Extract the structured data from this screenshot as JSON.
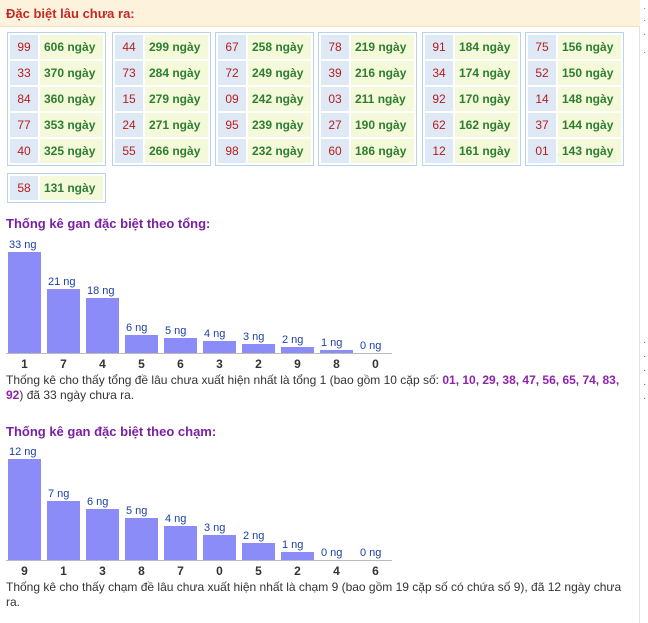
{
  "header": {
    "title": "Đặc biệt lâu chưa ra:"
  },
  "gan_groups": [
    [
      {
        "num": "99",
        "days": "606 ngày"
      },
      {
        "num": "33",
        "days": "370 ngày"
      },
      {
        "num": "84",
        "days": "360 ngày"
      },
      {
        "num": "77",
        "days": "353 ngày"
      },
      {
        "num": "40",
        "days": "325 ngày"
      }
    ],
    [
      {
        "num": "44",
        "days": "299 ngày"
      },
      {
        "num": "73",
        "days": "284 ngày"
      },
      {
        "num": "15",
        "days": "279 ngày"
      },
      {
        "num": "24",
        "days": "271 ngày"
      },
      {
        "num": "55",
        "days": "266 ngày"
      }
    ],
    [
      {
        "num": "67",
        "days": "258 ngày"
      },
      {
        "num": "72",
        "days": "249 ngày"
      },
      {
        "num": "09",
        "days": "242 ngày"
      },
      {
        "num": "95",
        "days": "239 ngày"
      },
      {
        "num": "98",
        "days": "232 ngày"
      }
    ],
    [
      {
        "num": "78",
        "days": "219 ngày"
      },
      {
        "num": "39",
        "days": "216 ngày"
      },
      {
        "num": "03",
        "days": "211 ngày"
      },
      {
        "num": "27",
        "days": "190 ngày"
      },
      {
        "num": "60",
        "days": "186 ngày"
      }
    ],
    [
      {
        "num": "91",
        "days": "184 ngày"
      },
      {
        "num": "34",
        "days": "174 ngày"
      },
      {
        "num": "92",
        "days": "170 ngày"
      },
      {
        "num": "62",
        "days": "162 ngày"
      },
      {
        "num": "12",
        "days": "161 ngày"
      }
    ],
    [
      {
        "num": "75",
        "days": "156 ngày"
      },
      {
        "num": "52",
        "days": "150 ngày"
      },
      {
        "num": "14",
        "days": "148 ngày"
      },
      {
        "num": "37",
        "days": "144 ngày"
      },
      {
        "num": "01",
        "days": "143 ngày"
      }
    ],
    [
      {
        "num": "58",
        "days": "131 ngày"
      }
    ]
  ],
  "tong": {
    "title": "Thống kê gan đặc biệt theo tổng:",
    "desc_before": "Thống kê cho thấy tổng đề lâu chưa xuất hiện nhất là tổng 1 (bao gồm 10 cặp số: ",
    "desc_highlight": "01, 10, 29, 38, 47, 56, 65, 74, 83, 92",
    "desc_after": ") đã 33 ngày chưa ra."
  },
  "cham": {
    "title": "Thống kê gan đặc biệt theo chạm:",
    "desc": "Thống kê cho thấy chạm đề lâu chưa xuất hiện nhất là chạm 9 (bao gồm 19 cặp số có chứa số 9), đã 12 ngày chưa ra."
  },
  "chart_data": [
    {
      "type": "bar",
      "categories": [
        "1",
        "7",
        "4",
        "5",
        "6",
        "3",
        "2",
        "9",
        "8",
        "0"
      ],
      "values": [
        33,
        21,
        18,
        6,
        5,
        4,
        3,
        2,
        1,
        0
      ],
      "value_labels": [
        "33 ng",
        "21 ng",
        "18 ng",
        "6 ng",
        "5 ng",
        "4 ng",
        "3 ng",
        "2 ng",
        "1 ng",
        "0 ng"
      ],
      "ylim": [
        0,
        33
      ],
      "bar_color": "#8c8cf8"
    },
    {
      "type": "bar",
      "categories": [
        "9",
        "1",
        "3",
        "8",
        "7",
        "0",
        "5",
        "2",
        "4",
        "6"
      ],
      "values": [
        12,
        7,
        6,
        5,
        4,
        3,
        2,
        1,
        0,
        0
      ],
      "value_labels": [
        "12 ng",
        "7 ng",
        "6 ng",
        "5 ng",
        "4 ng",
        "3 ng",
        "2 ng",
        "1 ng",
        "0 ng",
        "0 ng"
      ],
      "ylim": [
        0,
        12
      ],
      "bar_color": "#8c8cf8"
    }
  ]
}
